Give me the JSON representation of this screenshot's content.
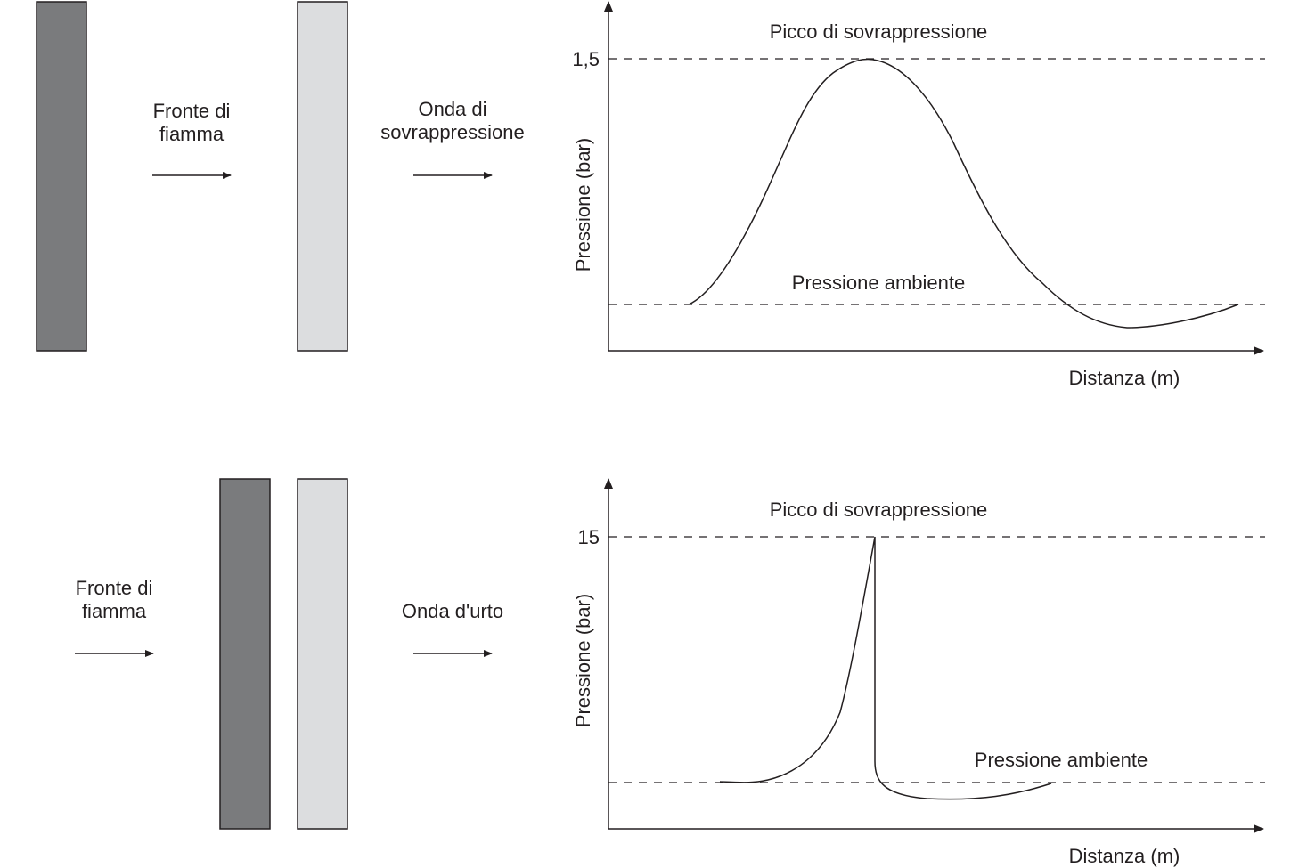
{
  "colors": {
    "flame_front_bar": "#7a7b7d",
    "pressure_wave_bar": "#dcdddf",
    "line": "#231f20"
  },
  "deflagration": {
    "flame_label_line1": "Fronte di",
    "flame_label_line2": "fiamma",
    "wave_label_line1": "Onda di",
    "wave_label_line2": "sovrappressione",
    "peak_label": "Picco di sovrappressione",
    "ambient_label": "Pressione ambiente",
    "y_axis_label": "Pressione (bar)",
    "x_axis_label": "Distanza (m)",
    "peak_value": "1,5"
  },
  "detonation": {
    "flame_label_line1": "Fronte di",
    "flame_label_line2": "fiamma",
    "wave_label": "Onda d'urto",
    "peak_label": "Picco di sovrappressione",
    "ambient_label": "Pressione ambiente",
    "y_axis_label": "Pressione (bar)",
    "x_axis_label": "Distanza (m)",
    "peak_value": "15"
  }
}
